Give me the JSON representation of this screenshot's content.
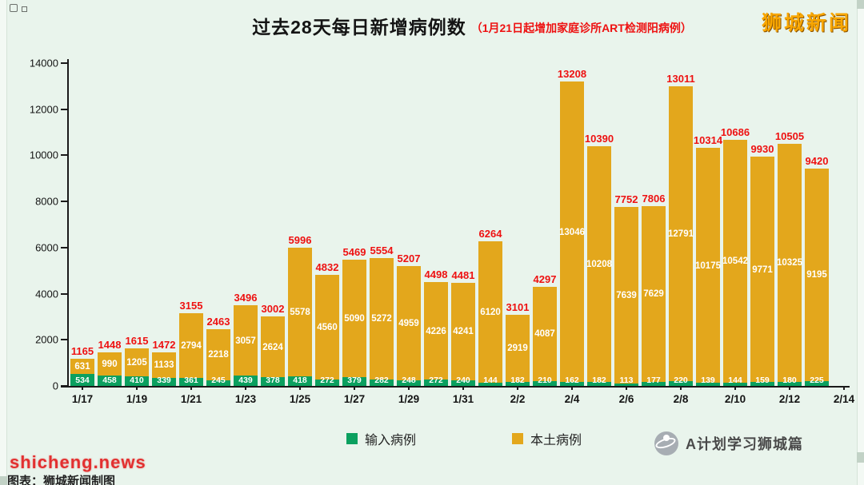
{
  "branding": {
    "site_logo": "狮城新闻",
    "watermark": "shicheng.news",
    "caption": "图表：狮城新闻制图",
    "channel_name": "A计划学习狮城篇",
    "globe_icon": "globe-orbit-icon"
  },
  "colors": {
    "background": "#e9f4ec",
    "local_bar": "#e3a71c",
    "imported_bar": "#0ba05f",
    "total_label": "#ee1111",
    "subtitle": "#ee1111",
    "logo": "#f8a600"
  },
  "chart_data": {
    "type": "bar",
    "stacked": true,
    "title": "过去28天每日新增病例数",
    "subtitle": "（1月21日起增加家庭诊所ART检测阳病例）",
    "grid": false,
    "legend_position": "bottom",
    "ylim": [
      0,
      14000
    ],
    "y_ticks": [
      0,
      2000,
      4000,
      6000,
      8000,
      10000,
      12000,
      14000
    ],
    "x_tick_labels": [
      "1/17",
      "1/19",
      "1/21",
      "1/23",
      "1/25",
      "1/27",
      "1/29",
      "1/31",
      "2/2",
      "2/4",
      "2/6",
      "2/8",
      "2/10",
      "2/12",
      "2/14"
    ],
    "series": [
      {
        "name": "输入病例",
        "color": "#0ba05f",
        "values": [
          534,
          458,
          410,
          339,
          361,
          245,
          439,
          378,
          418,
          272,
          379,
          282,
          248,
          272,
          240,
          144,
          182,
          210,
          162,
          182,
          113,
          177,
          220,
          139,
          144,
          159,
          180,
          225
        ]
      },
      {
        "name": "本土病例",
        "color": "#e3a71c",
        "values": [
          631,
          990,
          1205,
          1133,
          2794,
          2218,
          3057,
          2624,
          5578,
          4560,
          5090,
          5272,
          4959,
          4226,
          4241,
          6120,
          2919,
          4087,
          13046,
          10208,
          7639,
          7629,
          12791,
          10175,
          10542,
          9771,
          10325,
          9195
        ]
      }
    ],
    "totals": [
      1165,
      1448,
      1615,
      1472,
      3155,
      2463,
      3496,
      3002,
      5996,
      4832,
      5469,
      5554,
      5207,
      4498,
      4481,
      6264,
      3101,
      4297,
      13208,
      10390,
      7752,
      7806,
      13011,
      10314,
      10686,
      9930,
      10505,
      9420
    ]
  }
}
